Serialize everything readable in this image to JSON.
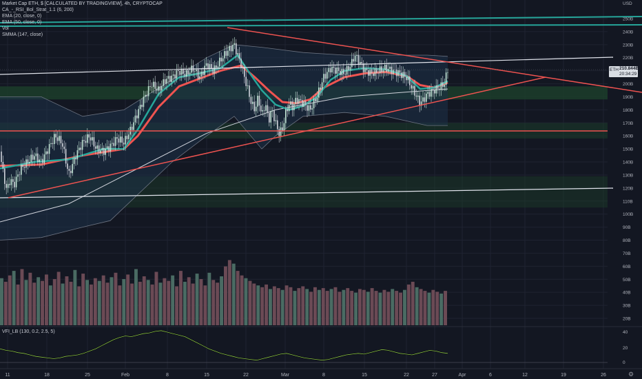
{
  "header": {
    "title": "Market Cap ETH, $ [CALCULATED BY TRADINGVIEW], 4h, CRYPTOCAP",
    "indicators": [
      "CA_-_RSI_Bol_Strat_1.1 (6, 200)",
      "EMA (20, close, 0)",
      "EMA (50, close, 0)",
      "Vol",
      "SMMA (147, close)"
    ]
  },
  "price_tag": {
    "symbol": "ETH",
    "value": "210.844B",
    "countdown": "20:34:29"
  },
  "axis_unit": "USD",
  "settings_icon": "gear-icon",
  "price_axis_labels": [
    "250B",
    "240B",
    "230B",
    "220B",
    "210B",
    "200B",
    "190B",
    "180B",
    "170B",
    "160B",
    "150B",
    "140B",
    "130B",
    "120B",
    "110B",
    "100B",
    "90B",
    "80B",
    "70B",
    "60B",
    "50B",
    "40B",
    "30B",
    "20B"
  ],
  "vfi": {
    "label": "VFI_LB (130, 0.2, 2.5, 5)",
    "axis_labels": [
      "40",
      "20",
      "0"
    ]
  },
  "time_axis_labels": [
    "11",
    "18",
    "25",
    "Feb",
    "8",
    "15",
    "22",
    "Mar",
    "8",
    "15",
    "22",
    "27",
    "Apr",
    "6",
    "12",
    "19",
    "26"
  ],
  "colors": {
    "background": "#131722",
    "grid": "#1f2331",
    "up_candle": "#c5e8d8",
    "down_candle": "#d1d4dc",
    "ema20": "#26a69a",
    "ema50": "#ef5350",
    "smma": "#d1d4dc",
    "bollinger_fill": "#1e3248",
    "green_zone": "#1c3d2a",
    "trendline": "#ef5350",
    "channel_white": "#e0e3eb",
    "teal_line": "#26a69a",
    "vfi_line": "#8bc34a"
  },
  "chart_data": {
    "type": "line",
    "ylim": [
      20,
      255
    ],
    "price_path": [
      [
        0,
        148
      ],
      [
        5,
        130
      ],
      [
        10,
        118
      ],
      [
        15,
        127
      ],
      [
        20,
        122
      ],
      [
        30,
        135
      ],
      [
        40,
        140
      ],
      [
        50,
        145
      ],
      [
        60,
        140
      ],
      [
        70,
        150
      ],
      [
        80,
        160
      ],
      [
        90,
        155
      ],
      [
        100,
        130
      ],
      [
        110,
        145
      ],
      [
        120,
        155
      ],
      [
        130,
        160
      ],
      [
        140,
        150
      ],
      [
        150,
        148
      ],
      [
        160,
        152
      ],
      [
        170,
        158
      ],
      [
        180,
        155
      ],
      [
        190,
        165
      ],
      [
        200,
        178
      ],
      [
        210,
        190
      ],
      [
        220,
        200
      ],
      [
        230,
        195
      ],
      [
        240,
        203
      ],
      [
        250,
        205
      ],
      [
        260,
        210
      ],
      [
        270,
        207
      ],
      [
        280,
        212
      ],
      [
        290,
        205
      ],
      [
        300,
        215
      ],
      [
        310,
        210
      ],
      [
        320,
        218
      ],
      [
        330,
        225
      ],
      [
        340,
        230
      ],
      [
        345,
        222
      ],
      [
        350,
        215
      ],
      [
        355,
        205
      ],
      [
        360,
        195
      ],
      [
        365,
        185
      ],
      [
        370,
        180
      ],
      [
        375,
        190
      ],
      [
        380,
        175
      ],
      [
        385,
        185
      ],
      [
        390,
        172
      ],
      [
        395,
        180
      ],
      [
        400,
        170
      ],
      [
        405,
        162
      ],
      [
        410,
        165
      ],
      [
        415,
        178
      ],
      [
        420,
        185
      ],
      [
        425,
        182
      ],
      [
        430,
        188
      ],
      [
        440,
        185
      ],
      [
        450,
        180
      ],
      [
        460,
        190
      ],
      [
        470,
        205
      ],
      [
        480,
        212
      ],
      [
        490,
        210
      ],
      [
        500,
        208
      ],
      [
        510,
        215
      ],
      [
        515,
        222
      ],
      [
        520,
        218
      ],
      [
        530,
        210
      ],
      [
        540,
        208
      ],
      [
        550,
        210
      ],
      [
        560,
        212
      ],
      [
        570,
        210
      ],
      [
        580,
        208
      ],
      [
        590,
        205
      ],
      [
        600,
        195
      ],
      [
        605,
        190
      ],
      [
        610,
        185
      ],
      [
        615,
        188
      ],
      [
        620,
        192
      ],
      [
        630,
        195
      ],
      [
        640,
        198
      ],
      [
        645,
        200
      ],
      [
        650,
        211
      ]
    ],
    "ema20_path": [
      [
        0,
        135
      ],
      [
        50,
        140
      ],
      [
        100,
        142
      ],
      [
        150,
        150
      ],
      [
        180,
        150
      ],
      [
        200,
        165
      ],
      [
        230,
        192
      ],
      [
        260,
        205
      ],
      [
        290,
        208
      ],
      [
        320,
        212
      ],
      [
        345,
        222
      ],
      [
        360,
        210
      ],
      [
        380,
        195
      ],
      [
        400,
        184
      ],
      [
        420,
        180
      ],
      [
        440,
        183
      ],
      [
        460,
        190
      ],
      [
        480,
        203
      ],
      [
        500,
        210
      ],
      [
        530,
        212
      ],
      [
        560,
        211
      ],
      [
        590,
        206
      ],
      [
        610,
        196
      ],
      [
        630,
        197
      ],
      [
        650,
        202
      ]
    ],
    "ema50_path": [
      [
        0,
        137
      ],
      [
        60,
        138
      ],
      [
        120,
        145
      ],
      [
        180,
        150
      ],
      [
        200,
        160
      ],
      [
        230,
        182
      ],
      [
        260,
        198
      ],
      [
        290,
        204
      ],
      [
        320,
        210
      ],
      [
        350,
        214
      ],
      [
        370,
        205
      ],
      [
        390,
        195
      ],
      [
        410,
        186
      ],
      [
        430,
        185
      ],
      [
        450,
        188
      ],
      [
        470,
        197
      ],
      [
        500,
        205
      ],
      [
        530,
        208
      ],
      [
        560,
        209
      ],
      [
        590,
        206
      ],
      [
        610,
        199
      ],
      [
        630,
        197
      ],
      [
        650,
        201
      ]
    ],
    "smma_path": [
      [
        0,
        94
      ],
      [
        100,
        108
      ],
      [
        200,
        135
      ],
      [
        300,
        162
      ],
      [
        400,
        180
      ],
      [
        500,
        190
      ],
      [
        600,
        194
      ],
      [
        650,
        196
      ]
    ],
    "bollinger_upper": [
      [
        0,
        190
      ],
      [
        60,
        190
      ],
      [
        120,
        175
      ],
      [
        180,
        180
      ],
      [
        240,
        200
      ],
      [
        300,
        220
      ],
      [
        340,
        230
      ],
      [
        380,
        228
      ],
      [
        440,
        224
      ],
      [
        500,
        222
      ],
      [
        560,
        222
      ],
      [
        620,
        222
      ],
      [
        650,
        221
      ]
    ],
    "bollinger_lower": [
      [
        0,
        80
      ],
      [
        60,
        82
      ],
      [
        120,
        90
      ],
      [
        160,
        95
      ],
      [
        200,
        115
      ],
      [
        250,
        140
      ],
      [
        300,
        160
      ],
      [
        340,
        175
      ],
      [
        380,
        150
      ],
      [
        400,
        160
      ],
      [
        440,
        175
      ],
      [
        500,
        178
      ],
      [
        560,
        175
      ],
      [
        620,
        168
      ],
      [
        650,
        168
      ]
    ],
    "volume_ylim": [
      0,
      80
    ],
    "volume_samples": [
      52,
      48,
      55,
      60,
      45,
      62,
      50,
      58,
      47,
      53,
      49,
      56,
      44,
      51,
      59,
      46,
      54,
      48,
      61,
      43,
      57,
      50,
      45,
      52,
      49,
      55,
      47,
      53,
      58,
      44,
      51,
      56,
      46,
      62,
      48,
      54,
      50,
      45,
      59,
      47,
      52,
      49,
      55,
      43,
      60,
      48,
      53,
      46,
      57,
      51,
      44,
      58,
      50,
      47,
      54,
      65,
      72,
      68,
      60,
      55,
      52,
      49,
      46,
      44,
      42,
      45,
      40,
      43,
      41,
      39,
      44,
      42,
      38,
      41,
      43,
      40,
      37,
      42,
      39,
      41,
      38,
      40,
      42,
      37,
      39,
      41,
      38,
      36,
      40,
      39,
      37,
      41,
      38,
      36,
      39,
      37,
      40,
      38,
      36,
      39,
      45,
      48,
      42,
      40,
      38,
      36,
      39,
      37,
      35,
      38
    ],
    "vfi_ylim": [
      -5,
      45
    ],
    "vfi_samples": [
      18,
      16,
      15,
      13,
      12,
      10,
      8,
      7,
      6,
      5,
      6,
      8,
      9,
      10,
      12,
      15,
      18,
      22,
      26,
      30,
      33,
      35,
      34,
      36,
      38,
      39,
      41,
      42,
      40,
      38,
      36,
      34,
      30,
      26,
      22,
      18,
      15,
      12,
      10,
      8,
      6,
      5,
      4,
      3,
      5,
      7,
      9,
      11,
      12,
      10,
      8,
      6,
      5,
      4,
      3,
      4,
      6,
      8,
      10,
      11,
      12,
      11,
      13,
      15,
      17,
      16,
      14,
      12,
      11,
      10,
      12,
      14,
      16,
      15,
      13,
      12
    ]
  }
}
